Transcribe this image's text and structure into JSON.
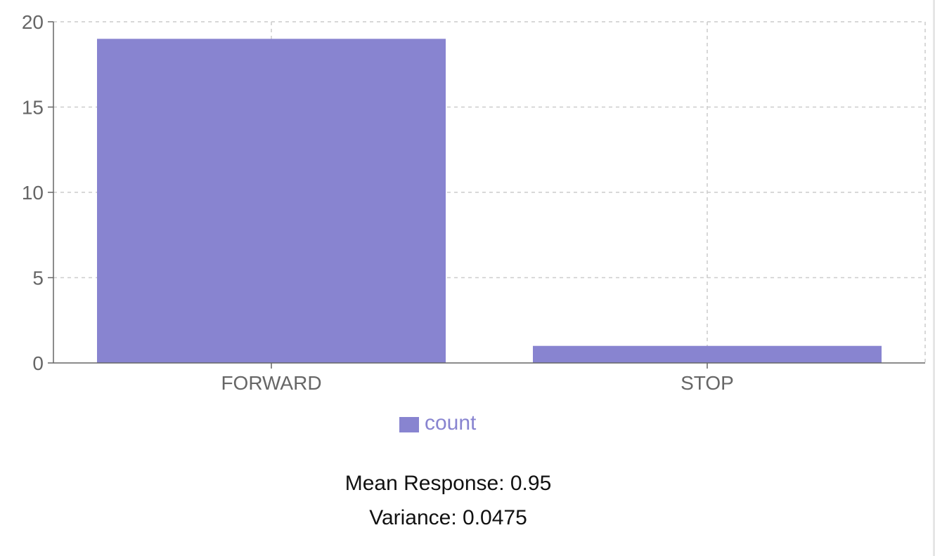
{
  "chart_data": {
    "type": "bar",
    "categories": [
      "FORWARD",
      "STOP"
    ],
    "series": [
      {
        "name": "count",
        "values": [
          19,
          1
        ],
        "color": "#8884d0"
      }
    ],
    "ylim": [
      0,
      20
    ],
    "yticks": [
      0,
      5,
      10,
      15,
      20
    ],
    "grid": true,
    "legend_position": "bottom"
  },
  "stats": {
    "mean_response": "Mean Response: 0.95",
    "variance": "Variance: 0.0475"
  }
}
